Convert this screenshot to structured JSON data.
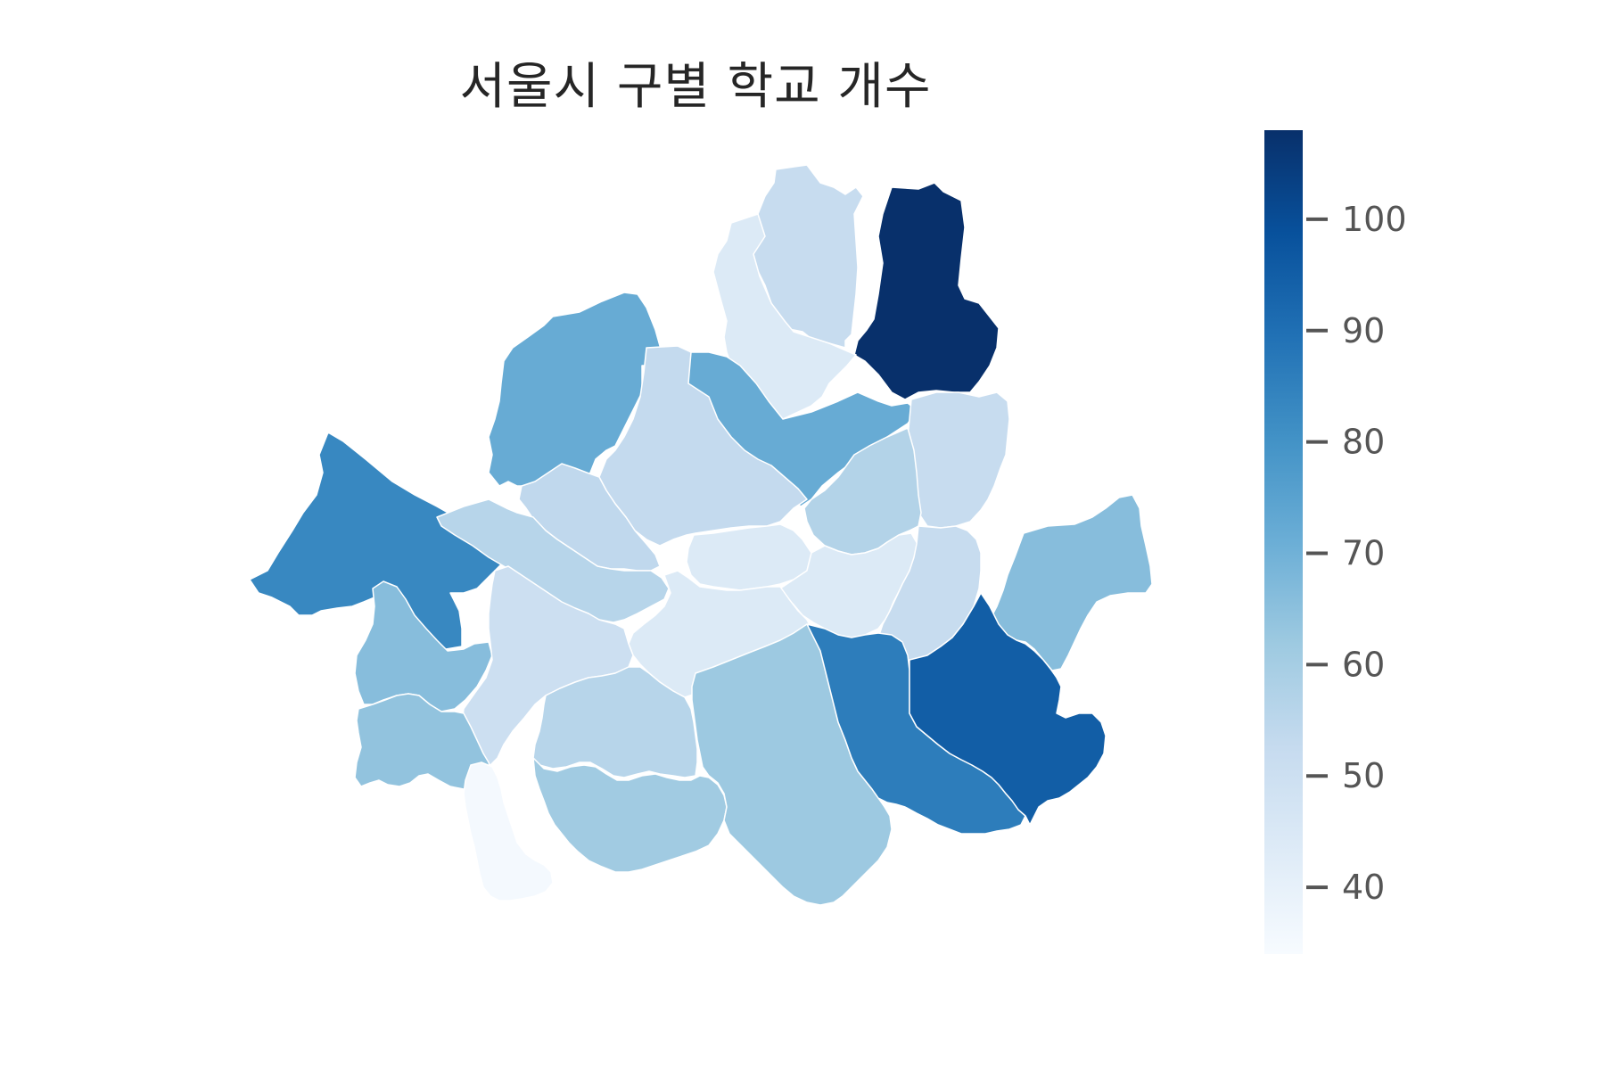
{
  "title": "서울시 구별 학교 개수",
  "colorbar": {
    "min": 34,
    "max": 108,
    "ticks": [
      40,
      50,
      60,
      70,
      80,
      90,
      100
    ],
    "colormap": [
      "#f7fbff",
      "#deebf7",
      "#c6dbef",
      "#9ecae1",
      "#6baed6",
      "#4292c6",
      "#2171b5",
      "#08519c",
      "#08306b"
    ]
  },
  "districts": [
    {
      "id": "dobong",
      "value": 52
    },
    {
      "id": "nowon",
      "value": 108
    },
    {
      "id": "gangbuk",
      "value": 44
    },
    {
      "id": "eunpyeong",
      "value": 72
    },
    {
      "id": "seongbuk",
      "value": 72
    },
    {
      "id": "jongno",
      "value": 53
    },
    {
      "id": "jungnang",
      "value": 52
    },
    {
      "id": "dongdaemun",
      "value": 57
    },
    {
      "id": "seodaemun",
      "value": 54
    },
    {
      "id": "gangseo",
      "value": 83
    },
    {
      "id": "mapo",
      "value": 56
    },
    {
      "id": "jung",
      "value": 44
    },
    {
      "id": "seongdong",
      "value": 44
    },
    {
      "id": "gwangjin",
      "value": 52
    },
    {
      "id": "yongsan",
      "value": 44
    },
    {
      "id": "gangdong",
      "value": 66
    },
    {
      "id": "yangcheon",
      "value": 66
    },
    {
      "id": "yeongdeungpo",
      "value": 50
    },
    {
      "id": "guro",
      "value": 64
    },
    {
      "id": "dongjak",
      "value": 56
    },
    {
      "id": "gwanak",
      "value": 61
    },
    {
      "id": "geumcheon",
      "value": 35
    },
    {
      "id": "seocho",
      "value": 62
    },
    {
      "id": "gangnam",
      "value": 86
    },
    {
      "id": "songpa",
      "value": 95
    }
  ]
}
